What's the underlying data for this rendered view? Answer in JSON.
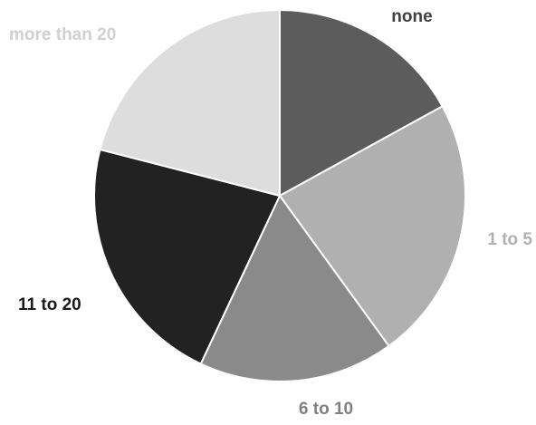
{
  "chart_data": {
    "type": "pie",
    "title": "",
    "start_angle_deg": 0,
    "direction": "clockwise",
    "slices": [
      {
        "label": "none",
        "value": 17,
        "color": "#5c5c5c",
        "label_color": "#404040"
      },
      {
        "label": "1 to 5",
        "value": 23,
        "color": "#b0b0b0",
        "label_color": "#b0b0b0"
      },
      {
        "label": "6 to 10",
        "value": 17,
        "color": "#8a8a8a",
        "label_color": "#808080"
      },
      {
        "label": "11 to 20",
        "value": 22,
        "color": "#222222",
        "label_color": "#1a1a1a"
      },
      {
        "label": "more than 20",
        "value": 21,
        "color": "#dddddd",
        "label_color": "#d0d0d0"
      }
    ]
  }
}
